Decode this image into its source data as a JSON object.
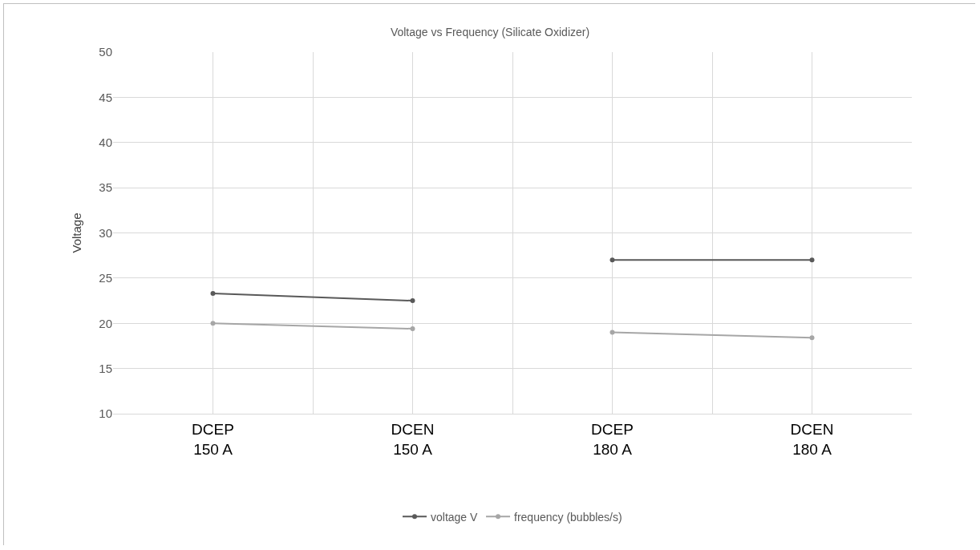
{
  "chart_data": {
    "type": "line",
    "title": "Voltage vs Frequency (Silicate Oxidizer)",
    "ylabel": "Voltage",
    "categories": [
      "DCEP\n150 A",
      "DCEN\n150 A",
      "DCEP\n180 A",
      "DCEN\n180 A"
    ],
    "series": [
      {
        "name": "voltage V",
        "color": "#595959",
        "values": [
          23.3,
          22.5,
          null,
          null
        ]
      },
      {
        "name": "frequency (bubbles/s)",
        "color": "#a6a6a6",
        "values": [
          20,
          19.4,
          null,
          null
        ]
      },
      {
        "color": "#595959",
        "values": [
          null,
          null,
          27,
          27
        ]
      },
      {
        "color": "#a6a6a6",
        "values": [
          null,
          null,
          19,
          18.4
        ]
      }
    ],
    "ylim": [
      10,
      50
    ],
    "yticks": [
      10,
      15,
      20,
      25,
      30,
      35,
      40,
      45,
      50
    ],
    "grid": true,
    "legend": "bottom",
    "marker": "circle",
    "line_style": "solid"
  }
}
